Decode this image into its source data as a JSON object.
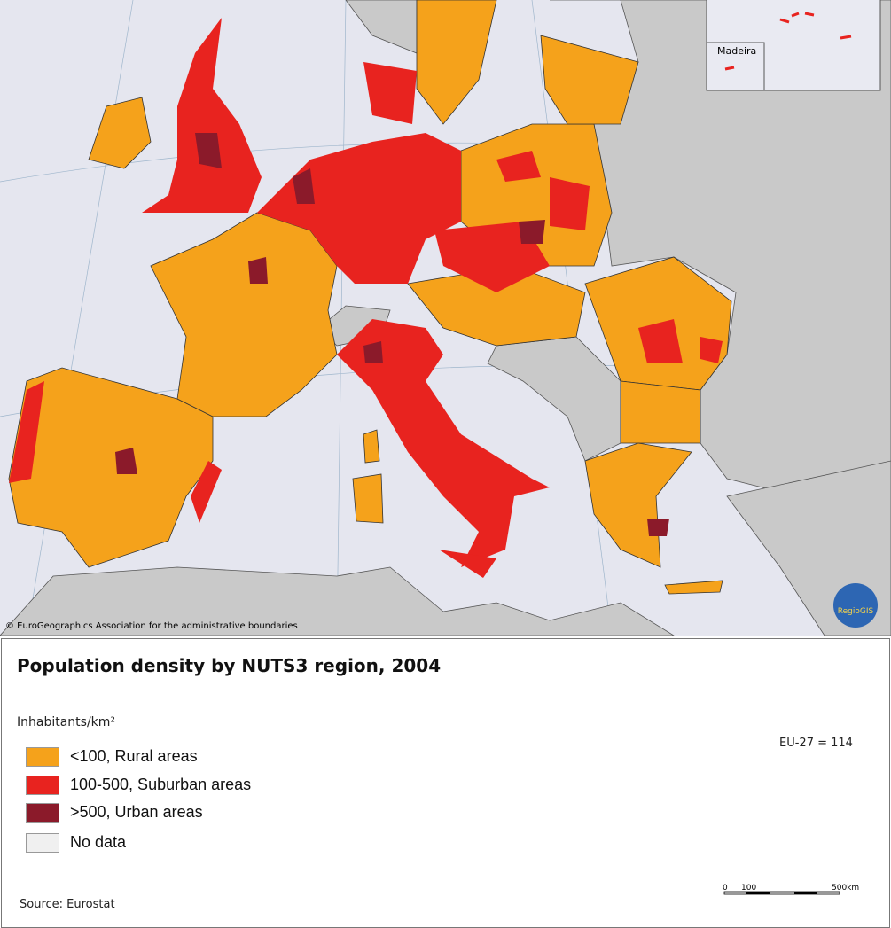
{
  "map": {
    "inset_label": "Madeira",
    "copyright": "© EuroGeographics Association for the administrative boundaries",
    "logo": "RegioGIS"
  },
  "legend": {
    "title": "Population density by NUTS3 region, 2004",
    "unit": "Inhabitants/km²",
    "items": [
      {
        "label": "<100, Rural areas",
        "color": "#f5a21b"
      },
      {
        "label": "100-500, Suburban areas",
        "color": "#e8231f"
      },
      {
        "label": ">500, Urban areas",
        "color": "#8b1a2a"
      },
      {
        "label": "No data",
        "color": "#f0f0f0"
      }
    ],
    "note": "EU-27 = 114",
    "scale": [
      "0",
      "100",
      "500km"
    ],
    "source": "Source: Eurostat"
  }
}
